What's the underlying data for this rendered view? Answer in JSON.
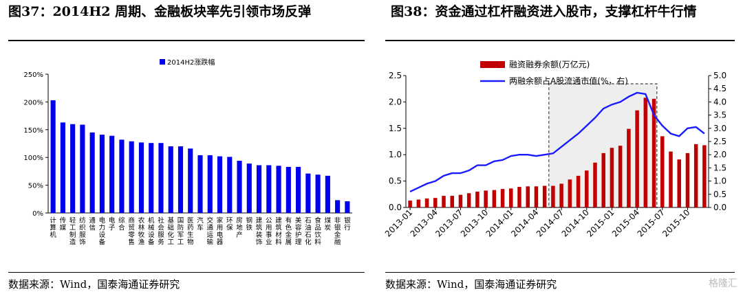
{
  "left_figure": {
    "title": "图37：2014H2 周期、金融板块率先引领市场反弹",
    "source": "数据来源：Wind，国泰海通证券研究"
  },
  "right_figure": {
    "title": "图38：资金通过杠杆融资进入股市，支撑杠杆牛行情",
    "source": "数据来源：Wind，国泰海通证券研究"
  },
  "watermark": "格隆汇",
  "colors": {
    "blue_bar": "#0000ee",
    "red_bar": "#c00000",
    "line": "#1a1aff",
    "box_fill": "#eeeeee"
  },
  "chart_data": [
    {
      "type": "bar",
      "title": "",
      "legend": [
        {
          "label": "2014H2涨跌幅",
          "position": "top-left"
        }
      ],
      "ylim": [
        0,
        250
      ],
      "yticks": [
        "0%",
        "50%",
        "100%",
        "150%",
        "200%",
        "250%"
      ],
      "grid": false,
      "categories": [
        "计算机",
        "传媒",
        "轻工制造",
        "纺织服饰",
        "通信",
        "电力设备",
        "电子",
        "综合",
        "商贸零售",
        "农林牧渔",
        "机械设备",
        "社会服务",
        "基础化工",
        "国防军工",
        "医药生物",
        "汽车",
        "交通运输",
        "家用电器",
        "环保",
        "房地产",
        "钢铁",
        "建筑装饰",
        "公用事业",
        "建筑材料",
        "有色金属",
        "美容护理",
        "石油石化",
        "食品饮料",
        "煤炭",
        "非银金融",
        "银行"
      ],
      "series": [
        {
          "name": "2014H2涨跌幅",
          "values": [
            203,
            163,
            160,
            159,
            145,
            141,
            139,
            132,
            129,
            127,
            126,
            126,
            120,
            120,
            116,
            104,
            104,
            102,
            101,
            94,
            89,
            86,
            86,
            85,
            83,
            83,
            71,
            69,
            67,
            23,
            21
          ]
        }
      ]
    },
    {
      "type": "bar+line",
      "title": "",
      "legend": [
        {
          "label": "融资融券余额(万亿元)",
          "type": "bar"
        },
        {
          "label": "两融余额占A股流通市值(%，右)",
          "type": "line"
        }
      ],
      "ylim_left": [
        0,
        2.5
      ],
      "yticks_left": [
        "0.0",
        "0.5",
        "1.0",
        "1.5",
        "2.0",
        "2.5"
      ],
      "ylim_right": [
        0,
        5.0
      ],
      "yticks_right": [
        "0.0",
        "0.5",
        "1.0",
        "1.5",
        "2.0",
        "2.5",
        "3.0",
        "3.5",
        "4.0",
        "4.5",
        "5.0"
      ],
      "xticks": [
        "2013-01",
        "2013-04",
        "2013-07",
        "2013-10",
        "2014-01",
        "2014-04",
        "2014-07",
        "2014-10",
        "2015-01",
        "2015-04",
        "2015-07",
        "2015-10"
      ],
      "x": [
        "2013-01",
        "2013-02",
        "2013-03",
        "2013-04",
        "2013-05",
        "2013-06",
        "2013-07",
        "2013-08",
        "2013-09",
        "2013-10",
        "2013-11",
        "2013-12",
        "2014-01",
        "2014-02",
        "2014-03",
        "2014-04",
        "2014-05",
        "2014-06",
        "2014-07",
        "2014-08",
        "2014-09",
        "2014-10",
        "2014-11",
        "2014-12",
        "2015-01",
        "2015-02",
        "2015-03",
        "2015-04",
        "2015-05",
        "2015-06",
        "2015-07",
        "2015-08",
        "2015-09",
        "2015-10",
        "2015-11",
        "2015-12"
      ],
      "series": [
        {
          "name": "融资融券余额(万亿元)",
          "type": "bar",
          "values": [
            0.13,
            0.15,
            0.17,
            0.18,
            0.22,
            0.22,
            0.24,
            0.27,
            0.3,
            0.32,
            0.33,
            0.35,
            0.36,
            0.39,
            0.4,
            0.4,
            0.41,
            0.41,
            0.45,
            0.53,
            0.6,
            0.7,
            0.85,
            1.03,
            1.13,
            1.17,
            1.49,
            1.84,
            2.08,
            2.06,
            1.35,
            1.06,
            0.91,
            1.03,
            1.2,
            1.18
          ]
        },
        {
          "name": "两融余额占A股流通市值(%，右)",
          "type": "line",
          "values": [
            0.6,
            0.75,
            0.9,
            1.0,
            1.2,
            1.3,
            1.3,
            1.4,
            1.6,
            1.6,
            1.75,
            1.8,
            1.95,
            2.0,
            2.0,
            1.95,
            2.0,
            2.05,
            2.3,
            2.55,
            2.8,
            3.1,
            3.4,
            3.75,
            3.9,
            4.0,
            4.2,
            4.35,
            4.3,
            3.5,
            3.1,
            2.8,
            2.7,
            3.0,
            3.05,
            2.8
          ]
        }
      ],
      "highlight_range": [
        "2014-06",
        "2015-06"
      ]
    }
  ]
}
